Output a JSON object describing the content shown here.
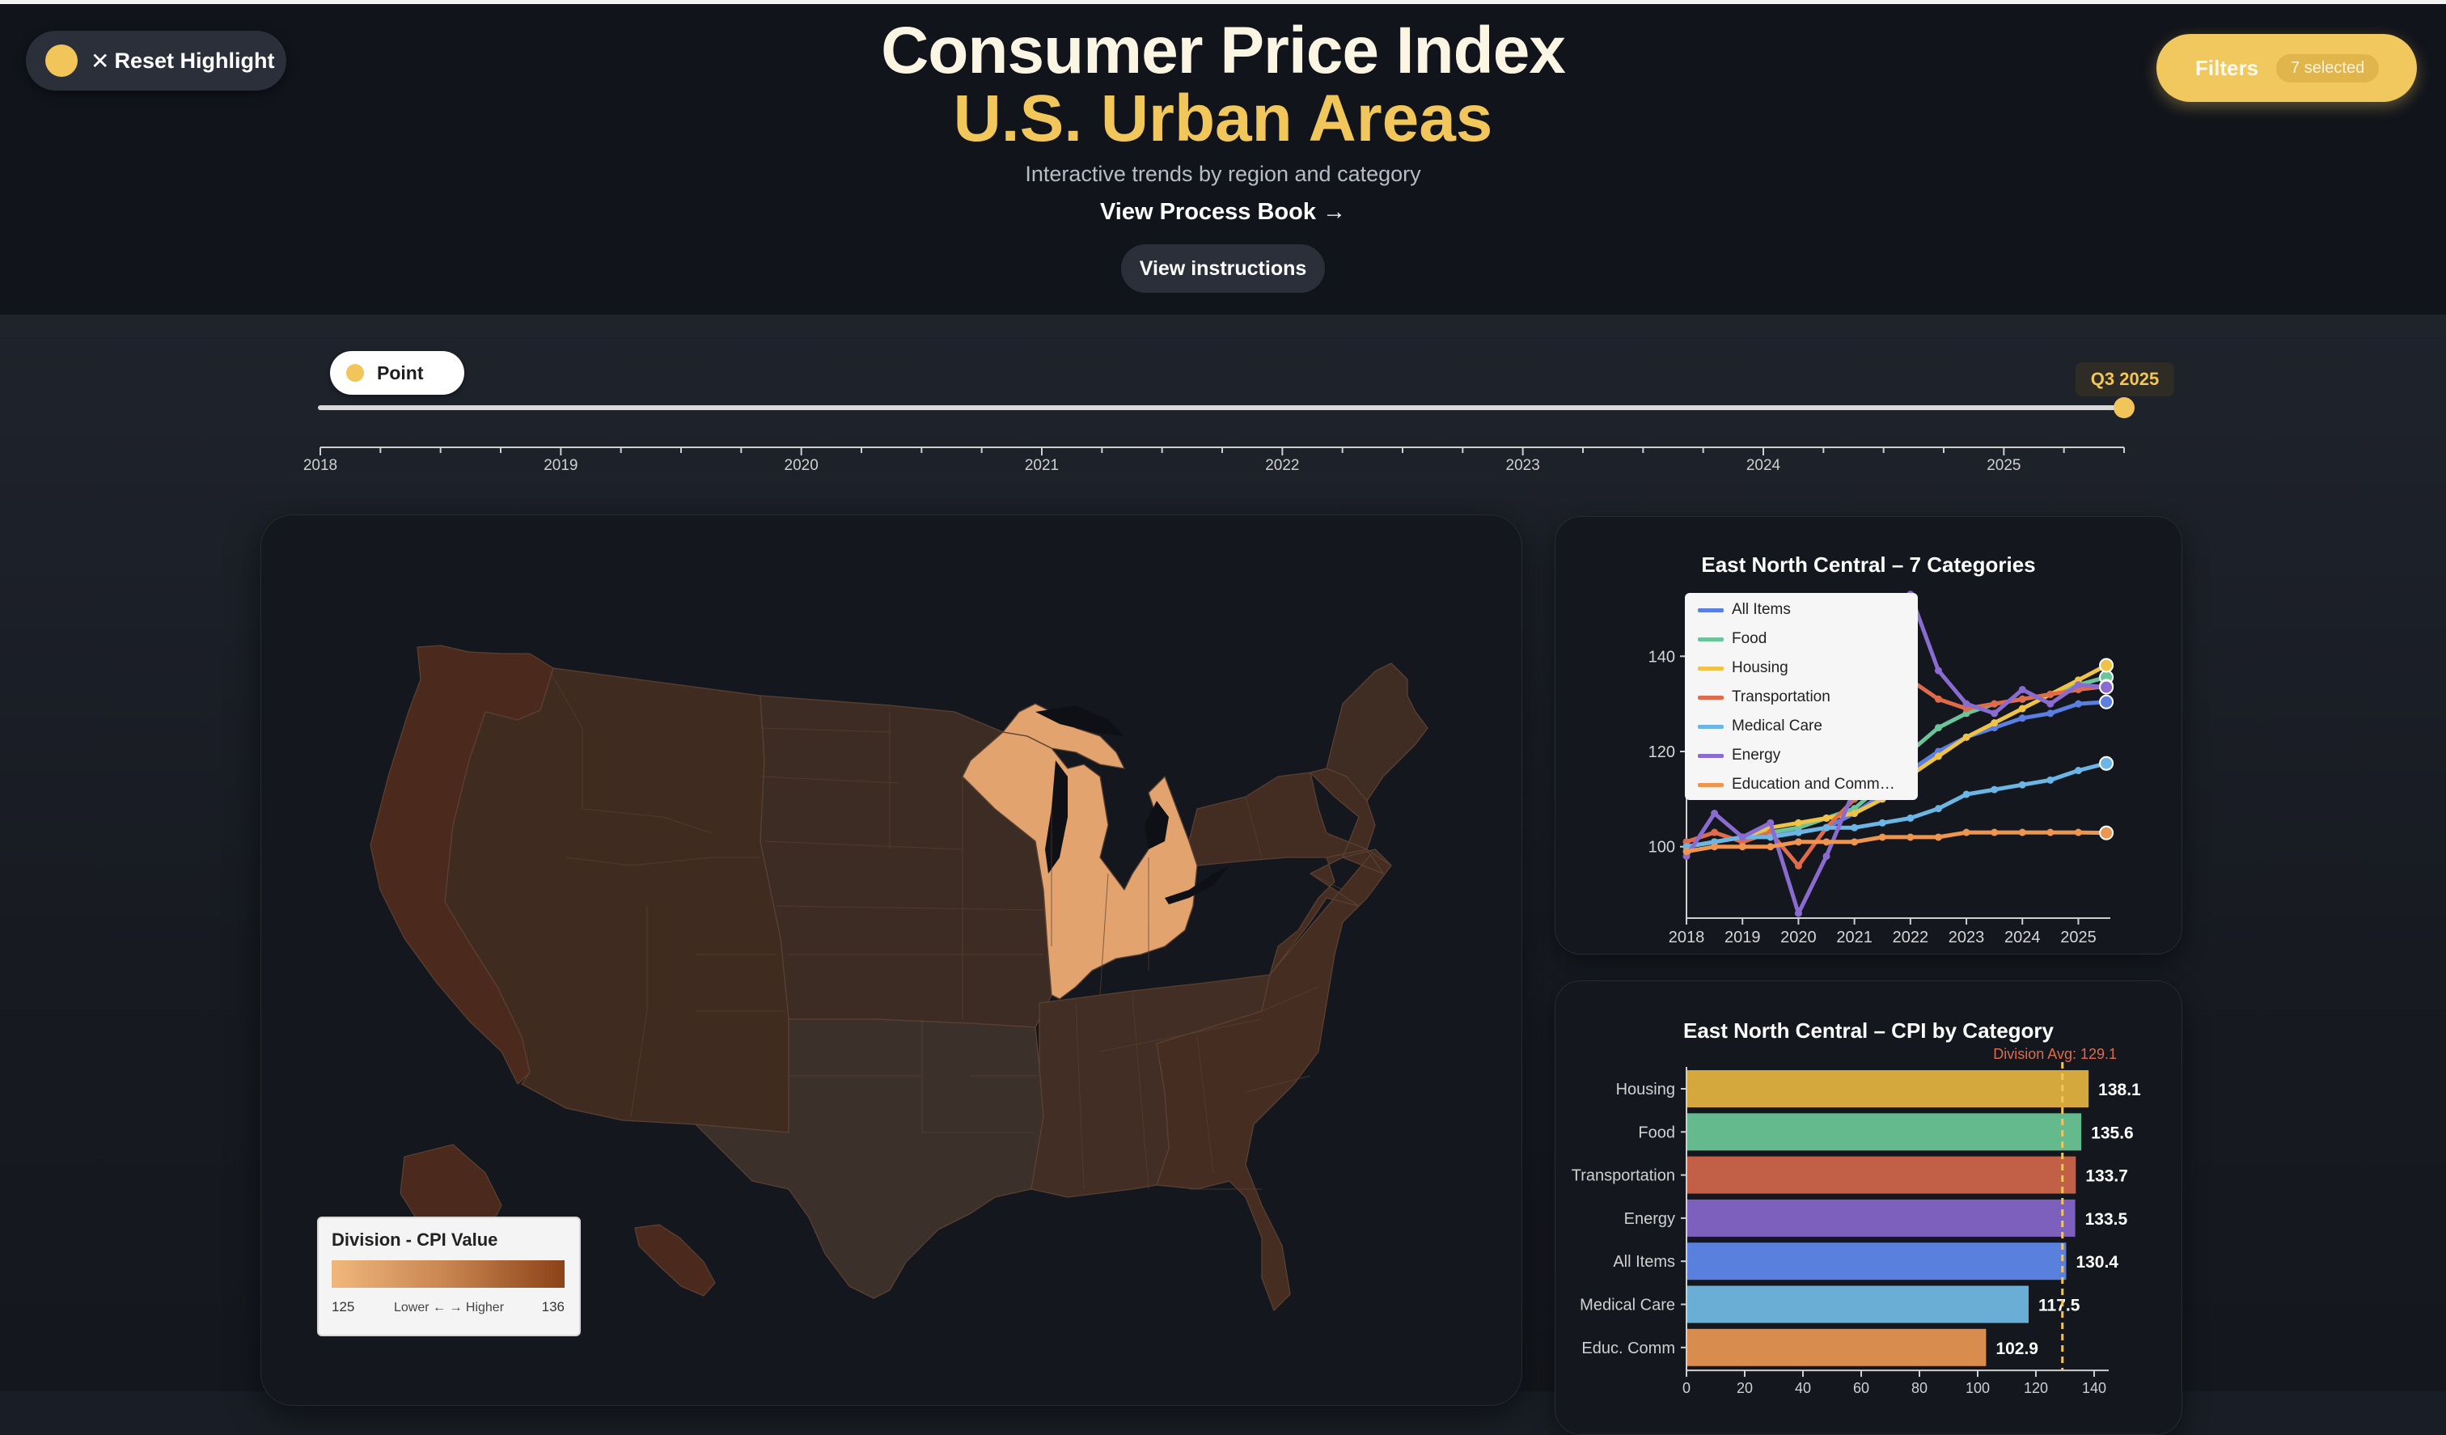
{
  "header": {
    "reset_label": "Reset Highlight",
    "title_line1": "Consumer Price Index",
    "title_line2": "U.S. Urban Areas",
    "subtitle": "Interactive trends by region and category",
    "process_link": "View Process Book →",
    "instructions_button": "View instructions",
    "filters_label": "Filters",
    "filters_count": "7 selected"
  },
  "timeline": {
    "mode_label": "Point",
    "selected_label": "Q3 2025",
    "year_labels": [
      "2018",
      "2019",
      "2020",
      "2021",
      "2022",
      "2023",
      "2024",
      "2025"
    ],
    "selected_position": 1.0
  },
  "map": {
    "legend_title": "Division - CPI Value",
    "legend_min": "125",
    "legend_max": "136",
    "legend_mid": "Lower ← → Higher",
    "highlighted_division": "East North Central",
    "colors": {
      "highlight": "#e2a36e",
      "pacific": "#4b2a1d",
      "mountain": "#402b20",
      "wnc": "#3d2c23",
      "wsc": "#3c302a",
      "esc": "#422e24",
      "south_atlantic": "#452d22",
      "middle_atlantic": "#432c22",
      "new_england": "#3f2c23"
    }
  },
  "line_chart": {
    "title": "East North Central – 7 Categories",
    "legend": [
      {
        "name": "All Items",
        "color": "#5b7fe0"
      },
      {
        "name": "Food",
        "color": "#6cc49a"
      },
      {
        "name": "Housing",
        "color": "#eec347"
      },
      {
        "name": "Transportation",
        "color": "#e06b4b"
      },
      {
        "name": "Medical Care",
        "color": "#6cb6e6"
      },
      {
        "name": "Energy",
        "color": "#8a6bd0"
      },
      {
        "name": "Education and Comm…",
        "color": "#ee9650"
      }
    ]
  },
  "bar_chart": {
    "title": "East North Central – CPI by Category",
    "avg_label": "Division Avg: 129.1"
  },
  "chart_data": [
    {
      "type": "line",
      "title": "East North Central – 7 Categories",
      "xlabel": "",
      "ylabel": "",
      "x_tick_labels": [
        "2018",
        "2019",
        "2020",
        "2021",
        "2022",
        "2023",
        "2024",
        "2025"
      ],
      "y_ticks": [
        100,
        120,
        140
      ],
      "xlim": [
        2018,
        2025.6
      ],
      "ylim": [
        85,
        155
      ],
      "grid": false,
      "legend_position": "top-left",
      "x": [
        2018,
        2018.5,
        2019,
        2019.5,
        2020,
        2020.5,
        2021,
        2021.5,
        2022,
        2022.5,
        2023,
        2023.5,
        2024,
        2024.5,
        2025,
        2025.5
      ],
      "series": [
        {
          "name": "All Items",
          "color": "#5b7fe0",
          "values": [
            100,
            101,
            102,
            103,
            103,
            104,
            107,
            111,
            116,
            120,
            123,
            125,
            127,
            128,
            130,
            130.4
          ]
        },
        {
          "name": "Food",
          "color": "#6cc49a",
          "values": [
            100,
            101,
            102,
            103,
            104,
            106,
            108,
            113,
            120,
            125,
            128,
            130,
            131,
            132,
            134,
            135.6
          ]
        },
        {
          "name": "Housing",
          "color": "#eec347",
          "values": [
            100,
            101,
            102,
            104,
            105,
            106,
            107,
            110,
            115,
            119,
            123,
            126,
            129,
            132,
            135,
            138.1
          ]
        },
        {
          "name": "Transportation",
          "color": "#e06b4b",
          "values": [
            101,
            103,
            101,
            103,
            96,
            104,
            110,
            120,
            135,
            131,
            129,
            130,
            131,
            132,
            133,
            133.7
          ]
        },
        {
          "name": "Medical Care",
          "color": "#6cb6e6",
          "values": [
            100,
            101,
            102,
            102,
            103,
            104,
            104,
            105,
            106,
            108,
            111,
            112,
            113,
            114,
            116,
            117.5
          ]
        },
        {
          "name": "Energy",
          "color": "#8a6bd0",
          "values": [
            98,
            107,
            102,
            105,
            86,
            98,
            112,
            122,
            153,
            137,
            130,
            128,
            133,
            130,
            134,
            133.5
          ]
        },
        {
          "name": "Education and Comm…",
          "color": "#ee9650",
          "values": [
            99,
            100,
            100,
            100,
            101,
            101,
            101,
            102,
            102,
            102,
            103,
            103,
            103,
            103,
            103,
            102.9
          ]
        }
      ]
    },
    {
      "type": "bar",
      "orientation": "horizontal",
      "title": "East North Central – CPI by Category",
      "categories": [
        "Housing",
        "Food",
        "Transportation",
        "Energy",
        "All Items",
        "Medical Care",
        "Educ. Comm"
      ],
      "values": [
        138.1,
        135.6,
        133.7,
        133.5,
        130.4,
        117.5,
        102.9
      ],
      "colors": [
        "#d4a83c",
        "#64b98d",
        "#c15f47",
        "#7d60bd",
        "#5a80de",
        "#6aaed6",
        "#d88c4d"
      ],
      "value_labels": [
        "138.1",
        "135.6",
        "133.7",
        "133.5",
        "130.4",
        "117.5",
        "102.9"
      ],
      "reference_line": 129.1,
      "x_ticks": [
        0,
        20,
        40,
        60,
        80,
        100,
        120,
        140
      ],
      "xlim": [
        0,
        145
      ]
    }
  ]
}
